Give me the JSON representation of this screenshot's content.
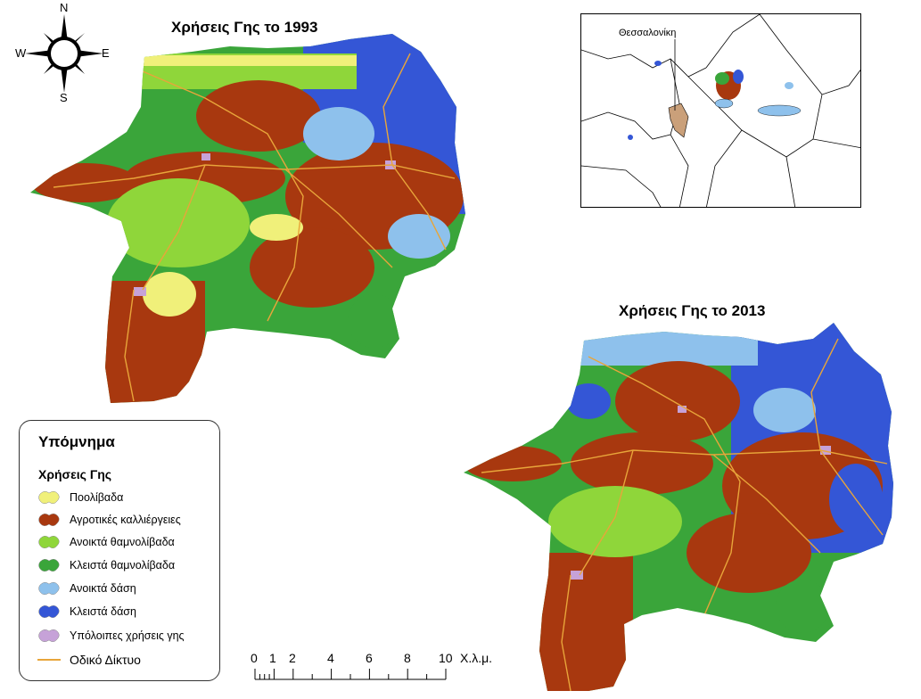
{
  "compass": {
    "n": "N",
    "s": "S",
    "e": "E",
    "w": "W",
    "icon": "compass-rose-icon"
  },
  "map_1993": {
    "title": "Χρήσεις Γης το 1993"
  },
  "map_2013": {
    "title": "Χρήσεις Γης το 2013"
  },
  "inset": {
    "label": "Θεσσαλονίκη"
  },
  "legend": {
    "title": "Υπόμνημα",
    "subtitle": "Χρήσεις Γης",
    "items": [
      {
        "label": "Ποολίβαδα",
        "color": "#f0f07a"
      },
      {
        "label": "Αγροτικές καλλιέργειες",
        "color": "#a8380f"
      },
      {
        "label": "Ανοικτά θαμνολίβαδα",
        "color": "#8fd63a"
      },
      {
        "label": "Κλειστά θαμνολίβαδα",
        "color": "#3aa53a"
      },
      {
        "label": "Ανοικτά δάση",
        "color": "#8ec1ec"
      },
      {
        "label": "Κλειστά δάση",
        "color": "#3456d6"
      },
      {
        "label": "Υπόλοιπες χρήσεις γης",
        "color": "#c6a2d8"
      }
    ],
    "road": {
      "label": "Οδικό Δίκτυο",
      "color": "#e8a53a"
    }
  },
  "scale_bar": {
    "ticks": [
      "0",
      "1",
      "2",
      "4",
      "6",
      "8",
      "10"
    ],
    "unit": "Χ.λ.μ."
  }
}
